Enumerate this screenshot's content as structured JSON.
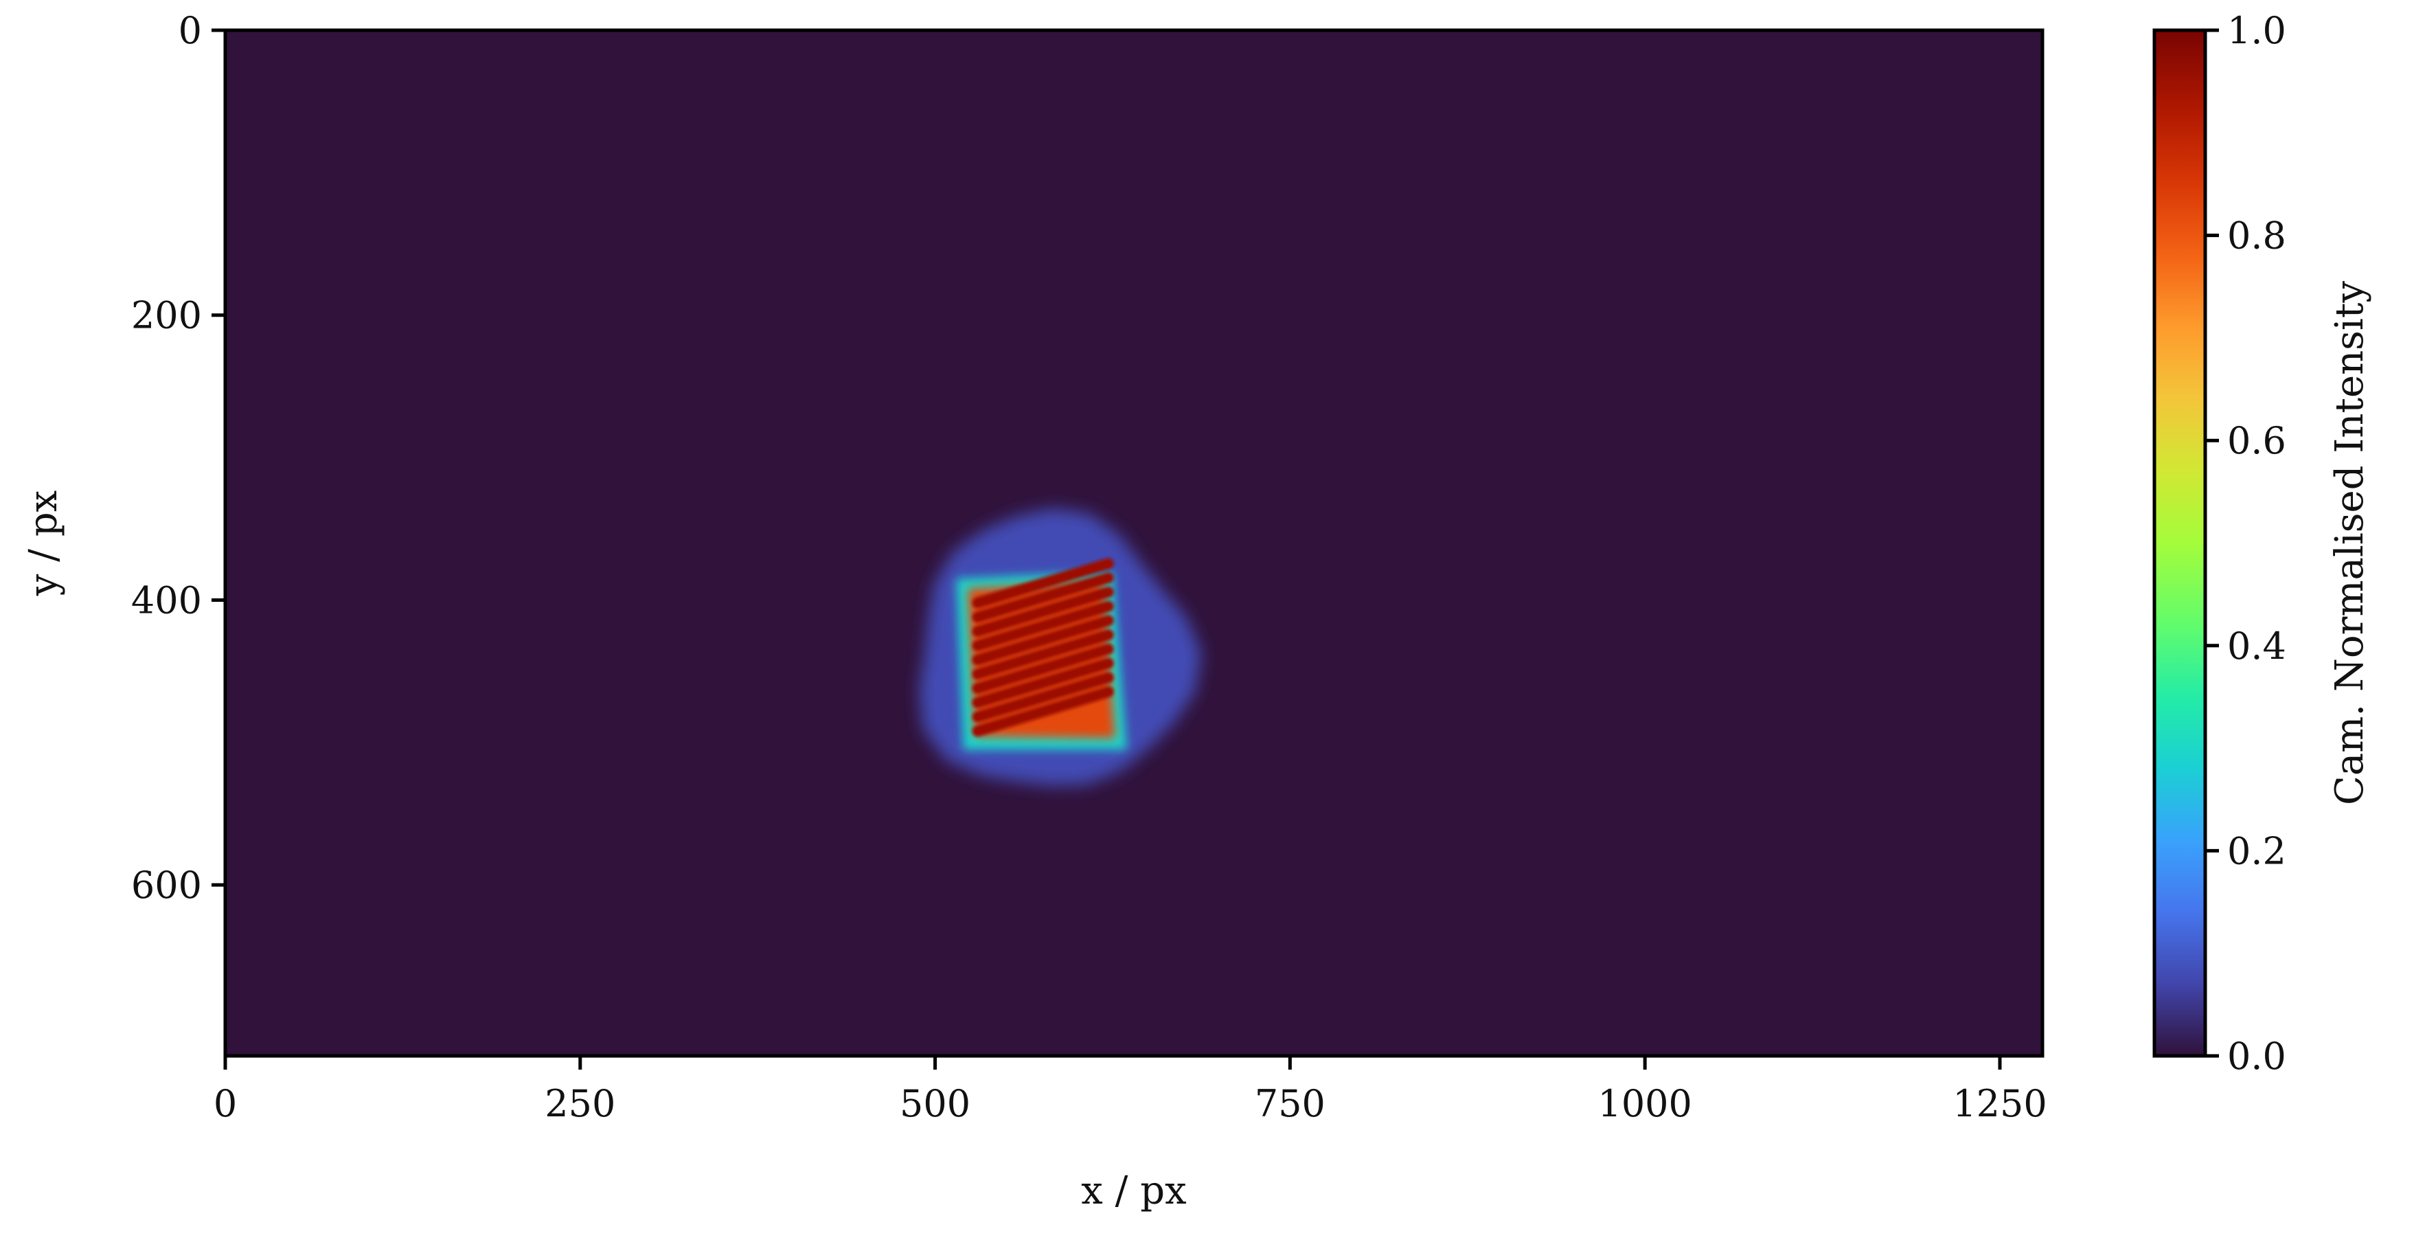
{
  "chart_data": {
    "type": "heatmap",
    "title": "",
    "xlabel": "x / px",
    "ylabel": "y / px",
    "xlim": [
      0,
      1280
    ],
    "ylim": [
      720,
      0
    ],
    "x_ticks": [
      0,
      250,
      500,
      750,
      1000,
      1250
    ],
    "x_tick_labels": [
      "0",
      "250",
      "500",
      "750",
      "1000",
      "1250"
    ],
    "y_ticks": [
      0,
      200,
      400,
      600
    ],
    "y_tick_labels": [
      "0",
      "200",
      "400",
      "600"
    ],
    "grid": false,
    "colormap": "turbo",
    "background_color": "#30123b",
    "colorbar": {
      "label": "Cam. Normalised Intensity",
      "range": [
        0.0,
        1.0
      ],
      "ticks": [
        0.0,
        0.2,
        0.4,
        0.6,
        0.8,
        1.0
      ],
      "tick_labels": [
        "0.0",
        "0.2",
        "0.4",
        "0.6",
        "0.8",
        "1.0"
      ]
    },
    "features": [
      {
        "name": "halo",
        "shape": "irregular-disc",
        "x_range": [
          485,
          680
        ],
        "y_range": [
          340,
          535
        ],
        "intensity": 0.08
      },
      {
        "name": "edge",
        "shape": "quad",
        "corners": [
          [
            515,
            385
          ],
          [
            625,
            380
          ],
          [
            635,
            505
          ],
          [
            520,
            505
          ]
        ],
        "intensity": 0.3
      },
      {
        "name": "spot",
        "shape": "quad",
        "corners": [
          [
            523,
            392
          ],
          [
            618,
            387
          ],
          [
            627,
            497
          ],
          [
            528,
            496
          ]
        ],
        "intensity": 0.82
      },
      {
        "name": "fringes",
        "shape": "stripes",
        "count": 10,
        "x_range": [
          530,
          622
        ],
        "y_start": 402,
        "y_step": 10,
        "slope": -0.3,
        "intensity": 0.95
      }
    ]
  }
}
